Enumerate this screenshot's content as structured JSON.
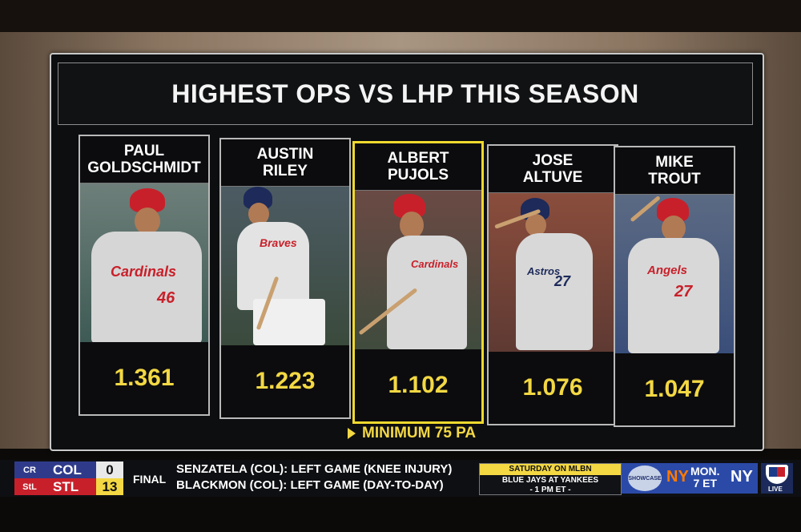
{
  "graphic": {
    "title": "HIGHEST OPS VS LHP THIS SEASON",
    "footer": "MINIMUM 75 PA",
    "colors": {
      "value": "#f3d843",
      "highlight_border": "#f0d92e",
      "panel": "#0d0e10"
    },
    "players": [
      {
        "name": "PAUL\nGOLDSCHMIDT",
        "ops": "1.361",
        "team_jersey": "Cardinals",
        "number": "46",
        "highlighted": false
      },
      {
        "name": "AUSTIN\nRILEY",
        "ops": "1.223",
        "team_jersey": "Braves",
        "number": "",
        "highlighted": false
      },
      {
        "name": "ALBERT\nPUJOLS",
        "ops": "1.102",
        "team_jersey": "Cardinals",
        "number": "",
        "highlighted": true
      },
      {
        "name": "JOSE\nALTUVE",
        "ops": "1.076",
        "team_jersey": "Astros",
        "number": "27",
        "highlighted": false
      },
      {
        "name": "MIKE\nTROUT",
        "ops": "1.047",
        "team_jersey": "Angels",
        "number": "27",
        "highlighted": false
      }
    ]
  },
  "ticker": {
    "away": {
      "abbr": "COL",
      "score": "0",
      "logo": "rockies-logo"
    },
    "home": {
      "abbr": "STL",
      "score": "13",
      "logo": "cardinals-logo"
    },
    "status": "FINAL",
    "notes": [
      "SENZATELA (COL): LEFT GAME (KNEE INJURY)",
      "BLACKMON (COL): LEFT GAME (DAY-TO-DAY)"
    ],
    "upcoming": {
      "header": "SATURDAY ON MLBN",
      "line1": "BLUE JAYS AT YANKEES",
      "line2": "- 1 PM ET -"
    },
    "promo": {
      "badge": "SHOWCASE",
      "mets": "NY",
      "day": "MON.",
      "time": "7 ET",
      "yankees": "NY"
    },
    "live_badge": "LIVE"
  }
}
